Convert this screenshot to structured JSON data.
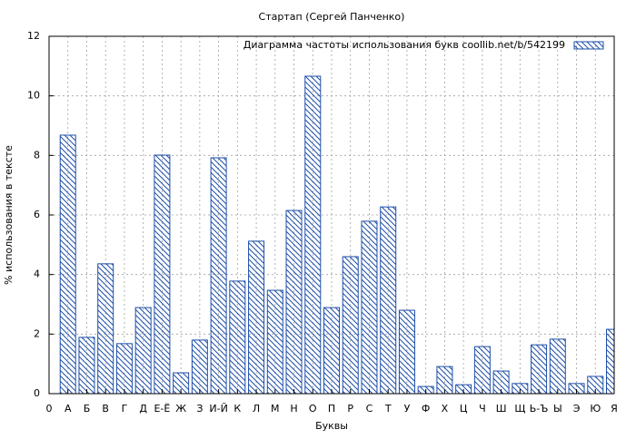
{
  "chart_data": {
    "type": "bar",
    "title": "Стартап (Сергей Панченко)",
    "x_label": "Буквы",
    "y_label": "% использования в тексте",
    "categories": [
      "0",
      "А",
      "Б",
      "В",
      "Г",
      "Д",
      "Е-Ё",
      "Ж",
      "З",
      "И-Й",
      "К",
      "Л",
      "М",
      "Н",
      "О",
      "П",
      "Р",
      "С",
      "Т",
      "У",
      "Ф",
      "Х",
      "Ц",
      "Ч",
      "Ш",
      "Щ",
      "Ь-Ъ",
      "Ы",
      "Э",
      "Ю",
      "Я"
    ],
    "series": [
      {
        "name": "Диаграмма частоты использования букв  coollib.net/b/542199",
        "color": "#1f4fa8",
        "values": [
          null,
          8.68,
          1.89,
          4.36,
          1.68,
          2.89,
          8.01,
          0.7,
          1.8,
          7.92,
          3.78,
          5.12,
          3.47,
          6.15,
          10.66,
          2.89,
          4.6,
          5.79,
          6.27,
          2.8,
          0.24,
          0.91,
          0.3,
          1.58,
          0.76,
          0.34,
          1.64,
          1.83,
          0.34,
          0.58,
          2.16
        ]
      }
    ],
    "ylim": [
      0,
      12
    ],
    "yticks": [
      0,
      2,
      4,
      6,
      8,
      10,
      12
    ],
    "grid": true,
    "legend": "top-right"
  }
}
